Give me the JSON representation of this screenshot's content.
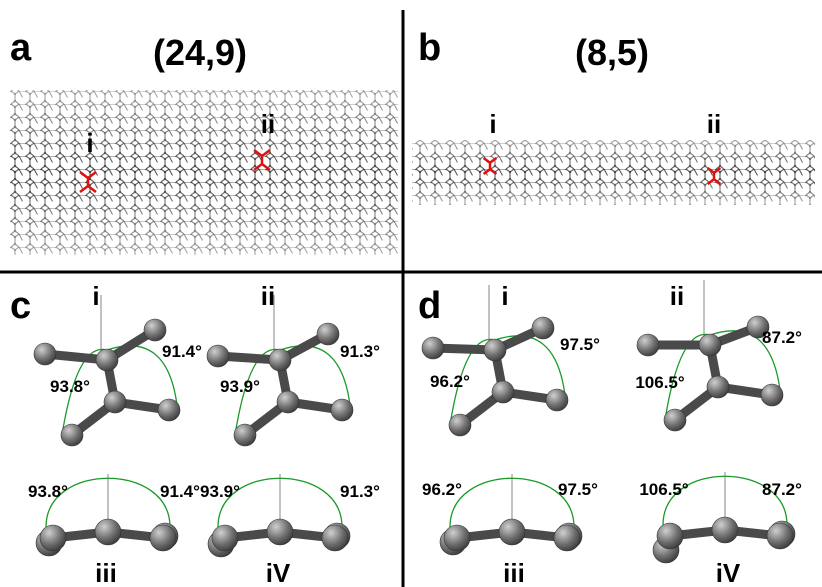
{
  "panels": [
    {
      "label": "a",
      "title": "(24,9)",
      "sites": [
        "i",
        "ii"
      ]
    },
    {
      "label": "b",
      "title": "(8,5)",
      "sites": [
        "i",
        "ii"
      ]
    },
    {
      "label": "c",
      "views": [
        {
          "label": "i",
          "angles": [
            "93.8°",
            "91.4°"
          ]
        },
        {
          "label": "ii",
          "angles": [
            "93.9°",
            "91.3°"
          ]
        },
        {
          "label": "iii",
          "angles": [
            "93.8°",
            "91.4°"
          ]
        },
        {
          "label": "iV",
          "angles": [
            "93.9°",
            "91.3°"
          ]
        }
      ]
    },
    {
      "label": "d",
      "views": [
        {
          "label": "i",
          "angles": [
            "96.2°",
            "97.5°"
          ]
        },
        {
          "label": "ii",
          "angles": [
            "106.5°",
            "87.2°"
          ]
        },
        {
          "label": "iii",
          "angles": [
            "96.2°",
            "97.5°"
          ]
        },
        {
          "label": "iV",
          "angles": [
            "106.5°",
            "87.2°"
          ]
        }
      ]
    }
  ]
}
